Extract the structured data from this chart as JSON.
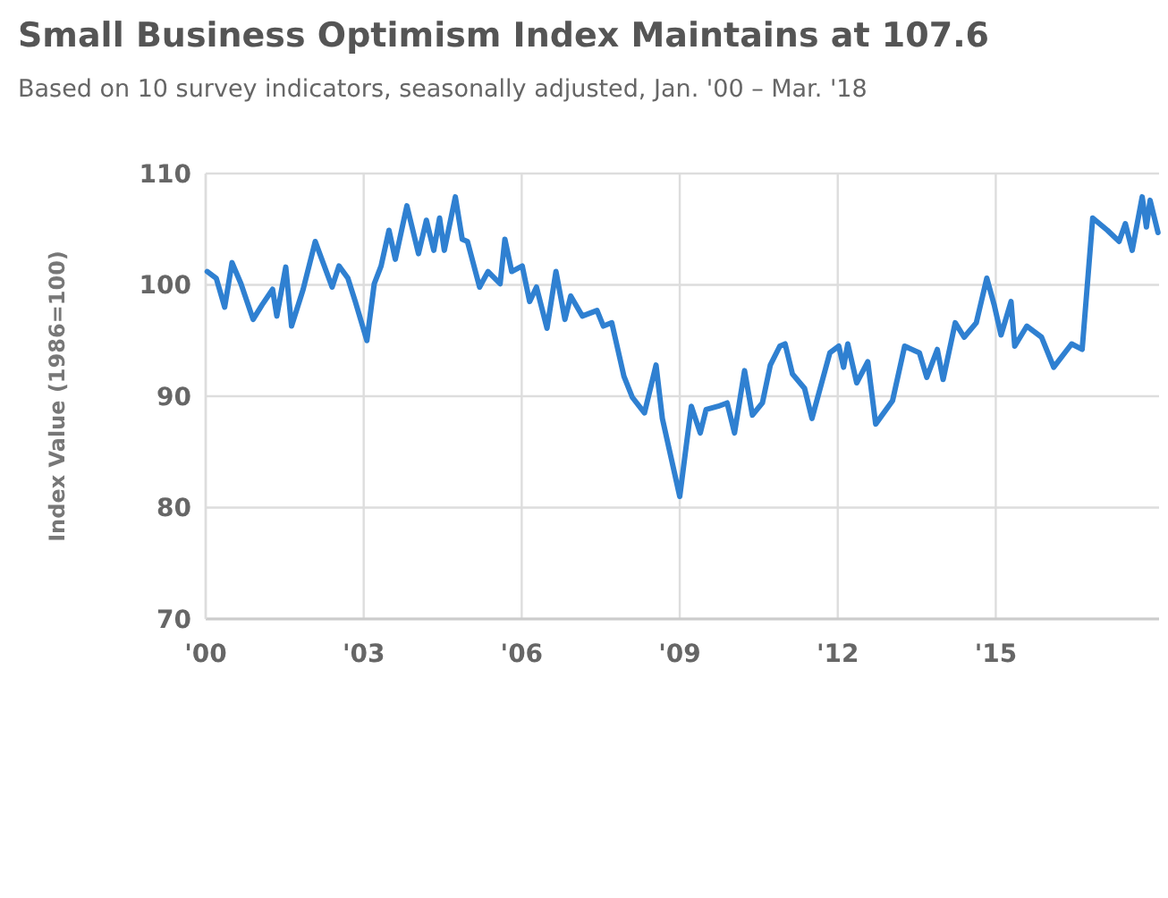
{
  "chart_data": {
    "type": "line",
    "title": "Small Business Optimism Index Maintains at 107.6",
    "subtitle": "Based on 10 survey indicators, seasonally adjusted, Jan. '00 – Mar. '18",
    "ylabel": "Index Value (1986=100)",
    "x": [
      2000.03,
      2000.2,
      2000.36,
      2000.5,
      2000.67,
      2000.9,
      2001.07,
      2001.27,
      2001.35,
      2001.52,
      2001.63,
      2001.85,
      2002.08,
      2002.4,
      2002.53,
      2002.7,
      2002.84,
      2003.06,
      2003.2,
      2003.33,
      2003.48,
      2003.6,
      2003.82,
      2004.04,
      2004.19,
      2004.33,
      2004.44,
      2004.53,
      2004.74,
      2004.87,
      2004.97,
      2005.2,
      2005.36,
      2005.59,
      2005.68,
      2005.81,
      2006.01,
      2006.15,
      2006.28,
      2006.48,
      2006.65,
      2006.82,
      2006.93,
      2007.15,
      2007.43,
      2007.55,
      2007.71,
      2007.94,
      2008.1,
      2008.33,
      2008.55,
      2008.67,
      2009.0,
      2009.22,
      2009.39,
      2009.5,
      2009.73,
      2009.9,
      2010.04,
      2010.23,
      2010.38,
      2010.57,
      2010.72,
      2010.9,
      2011.0,
      2011.14,
      2011.37,
      2011.51,
      2011.85,
      2012.02,
      2012.11,
      2012.19,
      2012.36,
      2012.57,
      2012.72,
      2013.04,
      2013.27,
      2013.55,
      2013.69,
      2013.89,
      2014.0,
      2014.23,
      2014.4,
      2014.63,
      2014.83,
      2014.97,
      2015.1,
      2015.29,
      2015.36,
      2015.59,
      2015.87,
      2016.1,
      2016.44,
      2016.64,
      2016.84,
      2017.12,
      2017.34,
      2017.46,
      2017.59,
      2017.78,
      2017.86,
      2017.93,
      2018.08
    ],
    "series": [
      {
        "color": "#2f80d1",
        "values": [
          101.2,
          100.6,
          98.0,
          102,
          100.1,
          96.9,
          98.2,
          99.6,
          97.2,
          101.6,
          96.3,
          99.6,
          103.9,
          99.8,
          101.7,
          100.6,
          98.5,
          95.0,
          100.1,
          101.7,
          104.9,
          102.3,
          107.1,
          102.8,
          105.8,
          103.1,
          106.0,
          103.1,
          107.9,
          104.1,
          103.9,
          99.8,
          101.2,
          100.1,
          104.1,
          101.2,
          101.7,
          98.5,
          99.8,
          96.1,
          101.2,
          96.9,
          99.0,
          97.2,
          97.7,
          96.3,
          96.6,
          91.8,
          89.9,
          88.5,
          92.8,
          88.0,
          81.0,
          89.1,
          86.7,
          88.8,
          89.1,
          89.4,
          86.7,
          92.3,
          88.3,
          89.4,
          92.8,
          94.5,
          94.7,
          92.0,
          90.7,
          88.0,
          93.9,
          94.5,
          92.6,
          94.7,
          91.2,
          93.1,
          87.5,
          89.6,
          94.5,
          93.9,
          91.7,
          94.2,
          91.5,
          96.6,
          95.3,
          96.6,
          100.6,
          98.2,
          95.5,
          98.5,
          94.5,
          96.3,
          95.3,
          92.6,
          94.7,
          94.2,
          106.0,
          104.9,
          103.9,
          105.5,
          103.1,
          107.9,
          105.2,
          107.6,
          104.7
        ]
      }
    ],
    "xlim": [
      2000,
      2018.1
    ],
    "xticks": [
      {
        "value": 2000,
        "label": "'00"
      },
      {
        "value": 2003,
        "label": "'03"
      },
      {
        "value": 2006,
        "label": "'06"
      },
      {
        "value": 2009,
        "label": "'09"
      },
      {
        "value": 2012,
        "label": "'12"
      },
      {
        "value": 2015,
        "label": "'15"
      }
    ],
    "ylim": [
      70,
      110
    ],
    "yticks": [
      70,
      80,
      90,
      100,
      110
    ],
    "grid": true
  }
}
